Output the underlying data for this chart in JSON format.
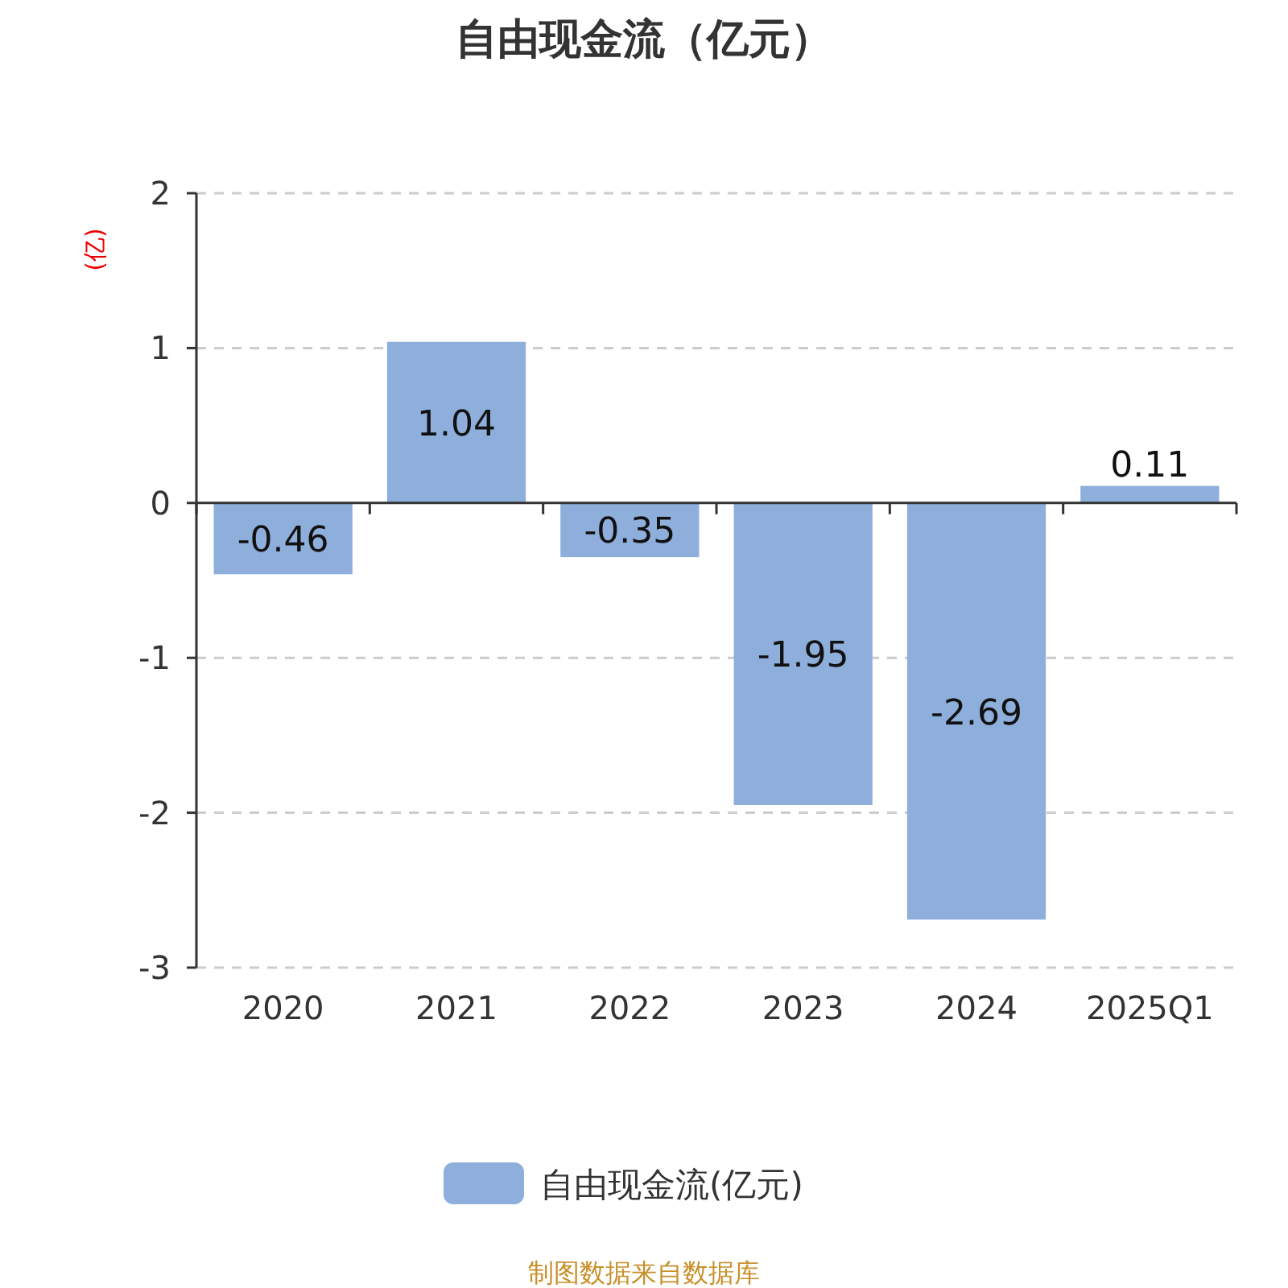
{
  "chart_data": {
    "type": "bar",
    "title": "自由现金流（亿元）",
    "ylabel": "(亿)",
    "categories": [
      "2020",
      "2021",
      "2022",
      "2023",
      "2024",
      "2025Q1"
    ],
    "series": [
      {
        "name": "自由现金流(亿元)",
        "color": "#8eaedb",
        "values": [
          -0.46,
          1.04,
          -0.35,
          -1.95,
          -2.69,
          0.11
        ]
      }
    ],
    "ylim": [
      -3,
      2
    ],
    "yticks": [
      -3,
      -2,
      -1,
      0,
      1,
      2
    ],
    "grid": "y",
    "legend": "bottom",
    "data_labels": true,
    "annotations": [
      "制图数据来自数据库"
    ]
  }
}
